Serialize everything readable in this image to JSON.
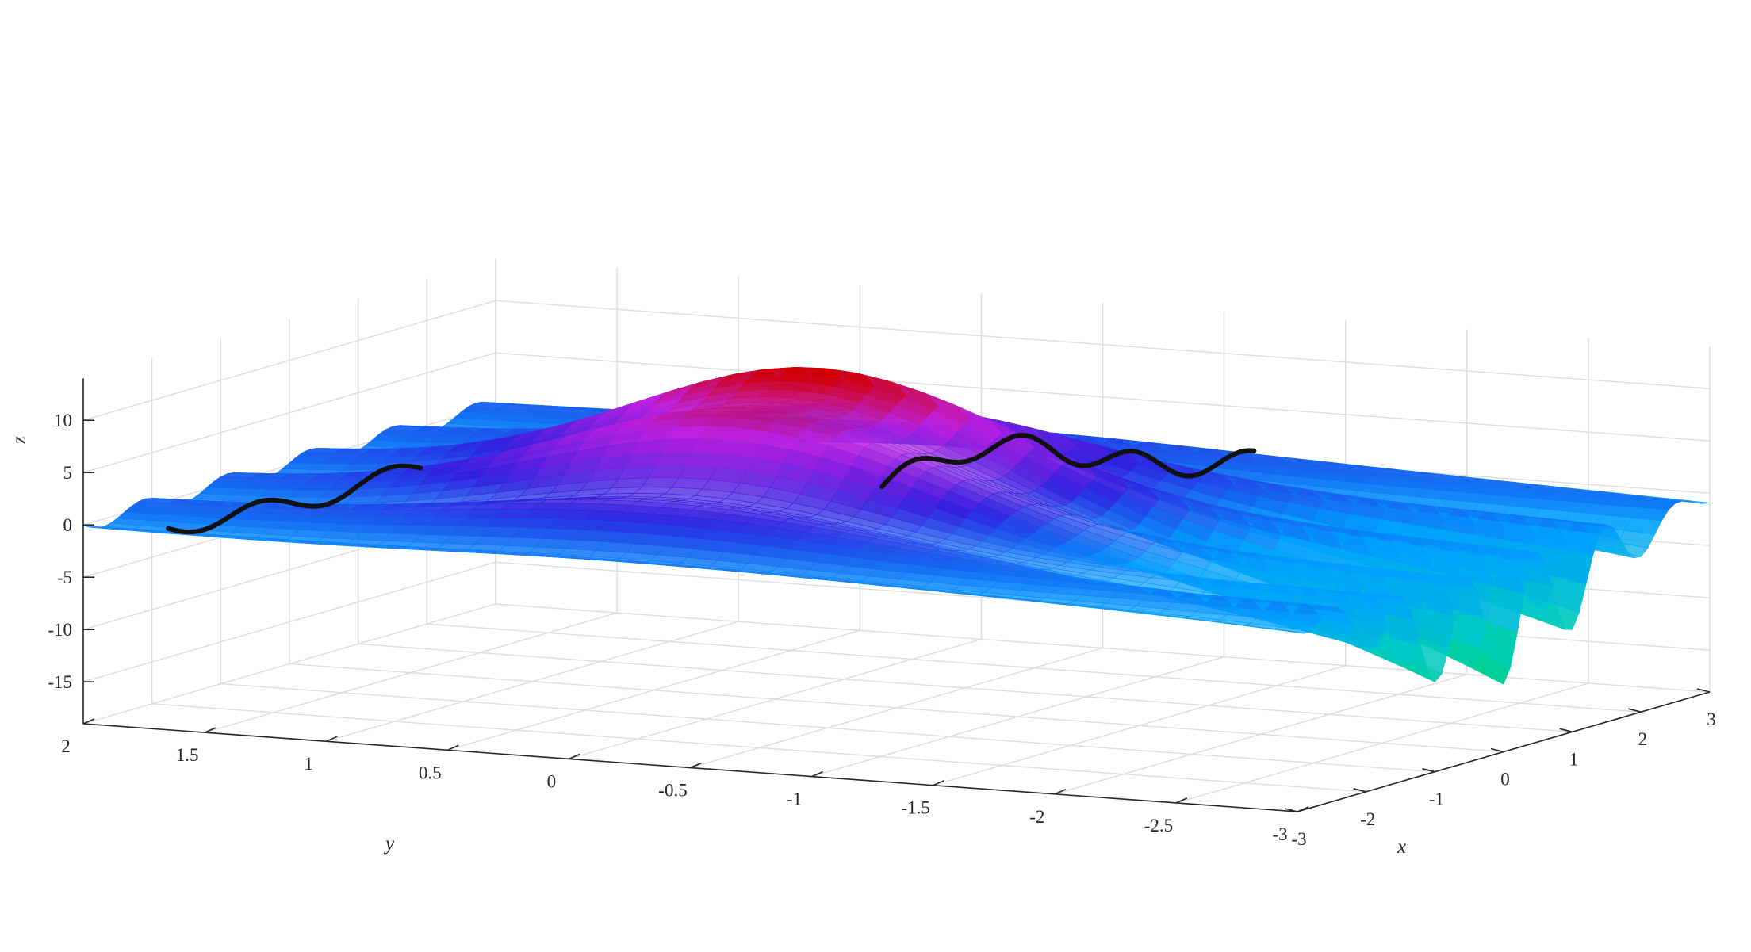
{
  "chart_data": {
    "type": "surface",
    "title": "",
    "xlabel": "x",
    "ylabel": "y",
    "zlabel": "z",
    "xlim": [
      -3,
      3
    ],
    "ylim": [
      -3,
      2
    ],
    "zlim": [
      -19,
      14
    ],
    "x_ticks": [
      -3,
      -2,
      -1,
      0,
      1,
      2,
      3
    ],
    "y_ticks": [
      2,
      1.5,
      1,
      0.5,
      0,
      -0.5,
      -1,
      -1.5,
      -2,
      -2.5,
      -3
    ],
    "z_ticks": [
      -15,
      -10,
      -5,
      0,
      5,
      10
    ],
    "x_tick_labels": [
      "-3",
      "-2",
      "-1",
      "0",
      "1",
      "2",
      "3"
    ],
    "y_tick_labels": [
      "2",
      "1.5",
      "1",
      "0.5",
      "0",
      "-0.5",
      "-1",
      "-1.5",
      "-2",
      "-2.5",
      "-3"
    ],
    "z_tick_labels": [
      "-15",
      "-10",
      "-5",
      "0",
      "5",
      "10"
    ],
    "grid": true,
    "colormap": [
      "#00e040",
      "#00c8c8",
      "#00a0ff",
      "#3020e0",
      "#c020e0",
      "#d00000"
    ],
    "curve_color": "#111111",
    "surface": {
      "peak": {
        "x": 0,
        "y": 0,
        "z": 12
      },
      "trough": {
        "x": -0.5,
        "y": -3,
        "z": -18
      },
      "ripples": "periodic ridges parallel to y axis"
    }
  }
}
